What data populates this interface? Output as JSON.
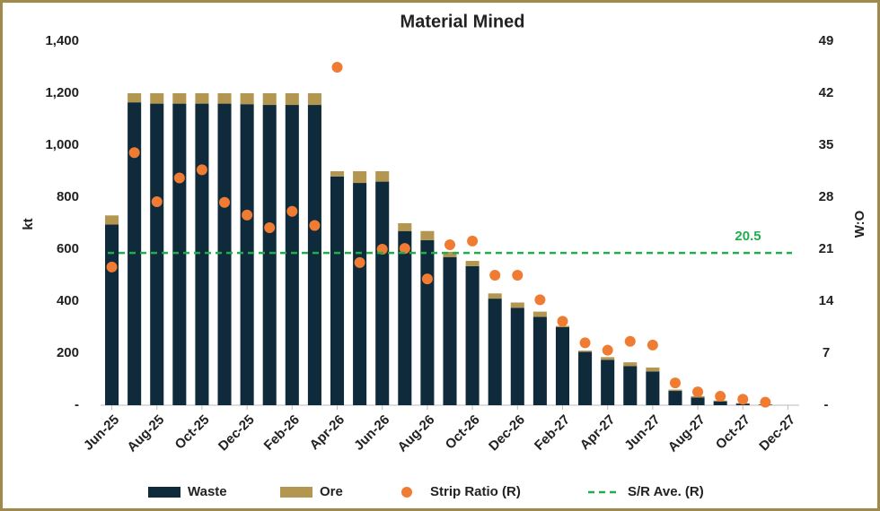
{
  "chart_data": {
    "type": "bar",
    "title": "Material Mined",
    "y_label": "kt",
    "y2_label": "W:O",
    "categories": [
      "Jun-25",
      null,
      "Aug-25",
      null,
      "Oct-25",
      null,
      "Dec-25",
      null,
      "Feb-26",
      null,
      "Apr-26",
      null,
      "Jun-26",
      null,
      "Aug-26",
      null,
      "Oct-26",
      null,
      "Dec-26",
      null,
      "Feb-27",
      null,
      "Apr-27",
      null,
      "Jun-27",
      null,
      "Aug-27",
      null,
      "Oct-27",
      null,
      "Dec-27"
    ],
    "series": [
      {
        "name": "Waste",
        "color": "#0e2a3b",
        "type": "bar",
        "values": [
          695,
          1165,
          1160,
          1160,
          1160,
          1160,
          1158,
          1155,
          1155,
          1155,
          880,
          855,
          860,
          670,
          635,
          570,
          535,
          410,
          375,
          340,
          300,
          205,
          175,
          150,
          130,
          55,
          30,
          15,
          6,
          2,
          null
        ]
      },
      {
        "name": "Ore",
        "color": "#b39650",
        "type": "bar",
        "values": [
          35,
          35,
          40,
          40,
          40,
          40,
          42,
          45,
          45,
          45,
          20,
          45,
          40,
          30,
          35,
          20,
          20,
          20,
          20,
          20,
          5,
          5,
          10,
          15,
          15,
          5,
          5,
          3,
          2,
          1,
          null
        ]
      },
      {
        "name": "Strip Ratio (R)",
        "color": "#f07c33",
        "type": "scatter",
        "axis": "y2",
        "values": [
          18.6,
          34.0,
          27.4,
          30.6,
          31.7,
          27.3,
          25.6,
          23.9,
          26.1,
          24.2,
          45.5,
          19.2,
          21.0,
          21.1,
          17.0,
          21.6,
          22.1,
          17.5,
          17.5,
          14.2,
          11.3,
          8.4,
          7.4,
          8.6,
          8.1,
          3.0,
          1.8,
          1.2,
          0.8,
          0.4,
          null
        ]
      },
      {
        "name": "S/R Ave. (R)",
        "color": "#1fae4b",
        "type": "hline",
        "axis": "y2",
        "value": 20.5
      }
    ],
    "ylim": [
      0,
      1400
    ],
    "yticks": [
      {
        "value": 0,
        "label": "-"
      },
      200,
      400,
      600,
      800,
      {
        "value": 1000,
        "label": "1,000"
      },
      {
        "value": 1200,
        "label": "1,200"
      },
      {
        "value": 1400,
        "label": "1,400"
      }
    ],
    "y2lim": [
      0,
      49
    ],
    "y2ticks": [
      {
        "value": 0,
        "label": "-"
      },
      7,
      14,
      21,
      28,
      35,
      42,
      49
    ],
    "legend": "bottom"
  }
}
